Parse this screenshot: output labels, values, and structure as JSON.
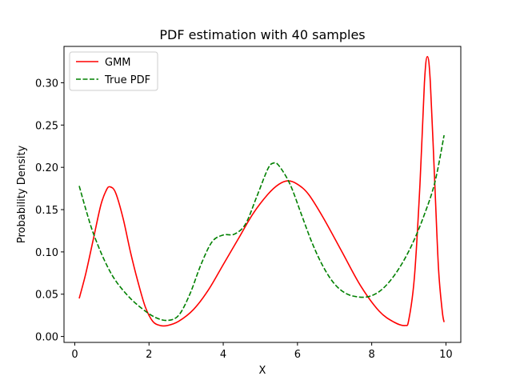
{
  "chart_data": {
    "type": "line",
    "title": "PDF estimation with 40 samples",
    "xlabel": "X",
    "ylabel": "Probability Density",
    "xlim": [
      -0.29,
      10.4
    ],
    "ylim": [
      -0.007,
      0.343
    ],
    "xticks": [
      0,
      2,
      4,
      6,
      8,
      10
    ],
    "yticks": [
      0.0,
      0.05,
      0.1,
      0.15,
      0.2,
      0.25,
      0.3
    ],
    "ytick_labels": [
      "0.00",
      "0.05",
      "0.10",
      "0.15",
      "0.20",
      "0.25",
      "0.30"
    ],
    "grid": false,
    "legend_position": "top-left",
    "series": [
      {
        "name": "GMM",
        "color": "#ff0000",
        "dash": "solid",
        "points": [
          [
            0.12,
            0.045
          ],
          [
            0.3,
            0.075
          ],
          [
            0.5,
            0.115
          ],
          [
            0.7,
            0.155
          ],
          [
            0.85,
            0.173
          ],
          [
            0.95,
            0.177
          ],
          [
            1.1,
            0.17
          ],
          [
            1.3,
            0.14
          ],
          [
            1.5,
            0.1
          ],
          [
            1.7,
            0.065
          ],
          [
            1.9,
            0.035
          ],
          [
            2.1,
            0.018
          ],
          [
            2.3,
            0.013
          ],
          [
            2.5,
            0.013
          ],
          [
            2.8,
            0.018
          ],
          [
            3.2,
            0.032
          ],
          [
            3.6,
            0.055
          ],
          [
            4.0,
            0.085
          ],
          [
            4.4,
            0.115
          ],
          [
            4.8,
            0.145
          ],
          [
            5.2,
            0.168
          ],
          [
            5.5,
            0.18
          ],
          [
            5.75,
            0.184
          ],
          [
            6.0,
            0.18
          ],
          [
            6.3,
            0.168
          ],
          [
            6.7,
            0.14
          ],
          [
            7.2,
            0.1
          ],
          [
            7.7,
            0.06
          ],
          [
            8.2,
            0.03
          ],
          [
            8.6,
            0.017
          ],
          [
            8.9,
            0.013
          ],
          [
            9.0,
            0.02
          ],
          [
            9.15,
            0.07
          ],
          [
            9.3,
            0.18
          ],
          [
            9.42,
            0.3
          ],
          [
            9.5,
            0.331
          ],
          [
            9.58,
            0.3
          ],
          [
            9.7,
            0.18
          ],
          [
            9.8,
            0.08
          ],
          [
            9.9,
            0.03
          ],
          [
            9.95,
            0.017
          ]
        ]
      },
      {
        "name": "True PDF",
        "color": "#008000",
        "dash": "dashed",
        "points": [
          [
            0.12,
            0.178
          ],
          [
            0.3,
            0.15
          ],
          [
            0.5,
            0.122
          ],
          [
            0.8,
            0.09
          ],
          [
            1.1,
            0.066
          ],
          [
            1.5,
            0.045
          ],
          [
            1.9,
            0.03
          ],
          [
            2.2,
            0.022
          ],
          [
            2.5,
            0.019
          ],
          [
            2.8,
            0.025
          ],
          [
            3.1,
            0.05
          ],
          [
            3.4,
            0.085
          ],
          [
            3.7,
            0.112
          ],
          [
            4.0,
            0.12
          ],
          [
            4.3,
            0.121
          ],
          [
            4.6,
            0.133
          ],
          [
            4.9,
            0.165
          ],
          [
            5.2,
            0.198
          ],
          [
            5.35,
            0.205
          ],
          [
            5.5,
            0.202
          ],
          [
            5.8,
            0.18
          ],
          [
            6.1,
            0.145
          ],
          [
            6.4,
            0.11
          ],
          [
            6.7,
            0.082
          ],
          [
            7.0,
            0.062
          ],
          [
            7.3,
            0.051
          ],
          [
            7.6,
            0.047
          ],
          [
            7.9,
            0.047
          ],
          [
            8.2,
            0.053
          ],
          [
            8.5,
            0.066
          ],
          [
            8.8,
            0.085
          ],
          [
            9.1,
            0.11
          ],
          [
            9.4,
            0.142
          ],
          [
            9.7,
            0.182
          ],
          [
            9.95,
            0.238
          ]
        ]
      }
    ]
  }
}
